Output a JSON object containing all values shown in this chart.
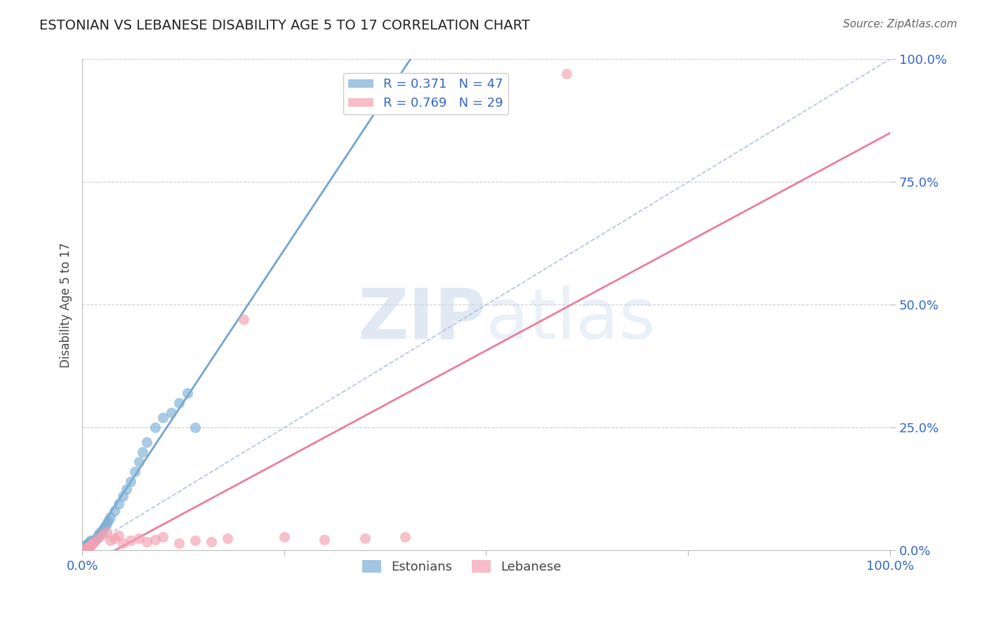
{
  "title": "ESTONIAN VS LEBANESE DISABILITY AGE 5 TO 17 CORRELATION CHART",
  "source": "Source: ZipAtlas.com",
  "ylabel": "Disability Age 5 to 17",
  "xlim": [
    0.0,
    100.0
  ],
  "ylim": [
    0.0,
    100.0
  ],
  "watermark": "ZIPatlas",
  "estonian_color": "#7bafd4",
  "lebanese_color": "#f4a0b0",
  "estonian_line_color": "#6699cc",
  "lebanese_line_color": "#e87090",
  "ref_line_color": "#aabbdd",
  "estonian_R": 0.371,
  "estonian_N": 47,
  "lebanese_R": 0.769,
  "lebanese_N": 29,
  "est_x": [
    0.2,
    0.3,
    0.3,
    0.4,
    0.4,
    0.5,
    0.5,
    0.5,
    0.6,
    0.6,
    0.7,
    0.7,
    0.8,
    0.8,
    0.9,
    0.9,
    1.0,
    1.0,
    1.1,
    1.2,
    1.3,
    1.4,
    1.5,
    1.6,
    1.8,
    2.0,
    2.2,
    2.5,
    2.8,
    3.0,
    3.2,
    3.5,
    4.0,
    4.5,
    5.0,
    5.5,
    6.0,
    6.5,
    7.0,
    7.5,
    8.0,
    9.0,
    10.0,
    11.0,
    12.0,
    13.0,
    14.0
  ],
  "est_y": [
    0.2,
    0.3,
    0.5,
    0.4,
    0.7,
    0.5,
    0.8,
    1.2,
    0.6,
    1.0,
    0.7,
    1.3,
    0.9,
    1.5,
    1.0,
    1.8,
    1.1,
    2.0,
    1.3,
    1.5,
    1.7,
    1.9,
    2.1,
    2.3,
    2.7,
    3.2,
    3.6,
    4.2,
    4.8,
    5.5,
    6.0,
    6.8,
    8.0,
    9.5,
    11.0,
    12.5,
    14.0,
    16.0,
    18.0,
    20.0,
    22.0,
    25.0,
    27.0,
    28.0,
    30.0,
    32.0,
    25.0
  ],
  "leb_x": [
    0.3,
    0.5,
    0.7,
    0.9,
    1.0,
    1.2,
    1.5,
    2.0,
    2.5,
    3.0,
    3.5,
    4.0,
    4.5,
    5.0,
    6.0,
    7.0,
    8.0,
    9.0,
    10.0,
    12.0,
    14.0,
    16.0,
    18.0,
    20.0,
    25.0,
    30.0,
    35.0,
    40.0,
    60.0
  ],
  "leb_y": [
    0.3,
    0.5,
    0.7,
    0.9,
    1.1,
    1.4,
    1.8,
    2.5,
    3.2,
    3.8,
    2.0,
    2.5,
    3.0,
    1.5,
    2.0,
    2.5,
    1.8,
    2.2,
    2.8,
    1.5,
    2.0,
    1.8,
    2.5,
    47.0,
    2.8,
    2.2,
    2.5,
    2.8,
    97.0
  ],
  "title_fontsize": 14,
  "source_fontsize": 11,
  "tick_fontsize": 13,
  "legend_fontsize": 13,
  "ylabel_fontsize": 12
}
